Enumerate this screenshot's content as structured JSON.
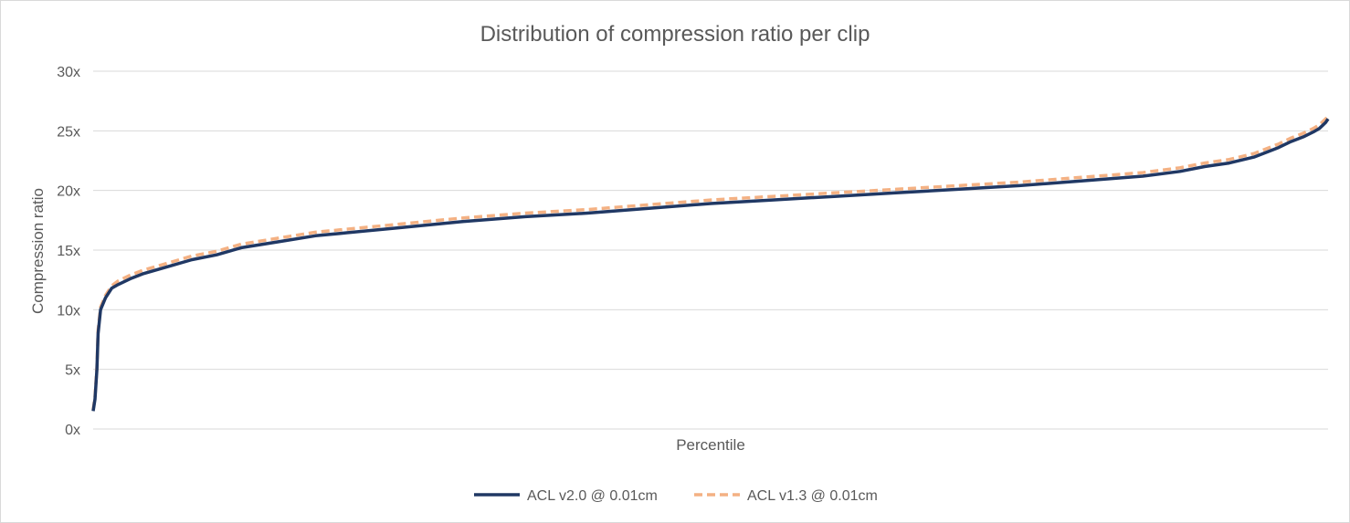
{
  "chart_data": {
    "type": "line",
    "title": "Distribution of compression ratio per clip",
    "xlabel": "Percentile",
    "ylabel": "Compression ratio",
    "ylim": [
      0,
      30
    ],
    "xlim": [
      0,
      100
    ],
    "y_ticks": [
      "0x",
      "5x",
      "10x",
      "15x",
      "20x",
      "25x",
      "30x"
    ],
    "y_tick_values": [
      0,
      5,
      10,
      15,
      20,
      25,
      30
    ],
    "grid": "horizontal",
    "legend_position": "bottom",
    "series": [
      {
        "name": "ACL v2.0 @ 0.01cm",
        "color": "#203864",
        "style": "solid",
        "x": [
          0,
          0.15,
          0.3,
          0.4,
          0.6,
          1,
          1.5,
          2,
          3,
          4,
          5,
          6,
          8,
          10,
          12,
          15,
          18,
          20,
          25,
          30,
          35,
          40,
          45,
          50,
          55,
          60,
          65,
          70,
          75,
          80,
          85,
          88,
          90,
          92,
          94,
          96,
          97,
          98,
          98.8,
          99.3,
          99.6,
          99.8,
          100
        ],
        "values": [
          1.5,
          2.5,
          5,
          8,
          10,
          11,
          11.8,
          12.1,
          12.6,
          13.0,
          13.3,
          13.6,
          14.2,
          14.6,
          15.2,
          15.7,
          16.2,
          16.4,
          16.9,
          17.4,
          17.8,
          18.1,
          18.5,
          18.9,
          19.2,
          19.5,
          19.8,
          20.1,
          20.4,
          20.8,
          21.2,
          21.6,
          22.0,
          22.3,
          22.8,
          23.6,
          24.1,
          24.5,
          24.9,
          25.2,
          25.5,
          25.7,
          26.0
        ]
      },
      {
        "name": "ACL v1.3 @ 0.01cm",
        "color": "#F4B183",
        "style": "dashed",
        "x": [
          0,
          0.15,
          0.3,
          0.4,
          0.6,
          1,
          1.5,
          2,
          3,
          4,
          5,
          6,
          8,
          10,
          12,
          15,
          18,
          20,
          25,
          30,
          35,
          40,
          45,
          50,
          55,
          60,
          65,
          70,
          75,
          80,
          85,
          88,
          90,
          92,
          94,
          96,
          97,
          98,
          98.8,
          99.3,
          99.6,
          99.8,
          100
        ],
        "values": [
          1.6,
          2.7,
          5.2,
          8.3,
          10.2,
          11.2,
          12.0,
          12.4,
          12.9,
          13.3,
          13.6,
          13.9,
          14.5,
          14.9,
          15.5,
          16.0,
          16.5,
          16.7,
          17.2,
          17.7,
          18.1,
          18.4,
          18.8,
          19.2,
          19.5,
          19.8,
          20.1,
          20.4,
          20.7,
          21.1,
          21.5,
          21.9,
          22.3,
          22.6,
          23.1,
          23.9,
          24.4,
          24.8,
          25.2,
          25.5,
          25.8,
          26.0,
          26.2
        ]
      }
    ]
  }
}
